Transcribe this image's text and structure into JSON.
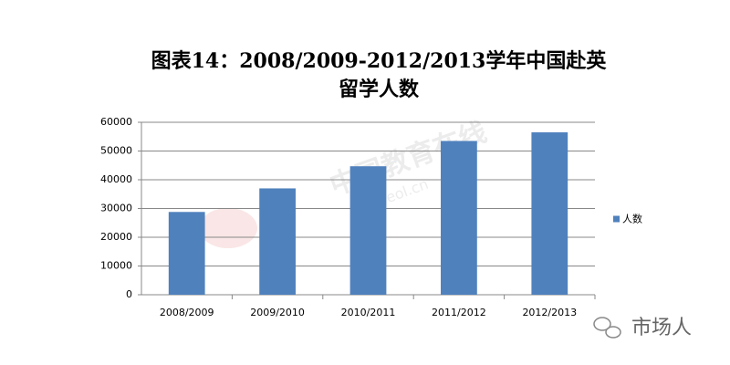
{
  "chart_data": {
    "type": "bar",
    "title": "图表14：2008/2009-2012/2013学年中国赴英留学人数",
    "categories": [
      "2008/2009",
      "2009/2010",
      "2010/2011",
      "2011/2012",
      "2012/2013"
    ],
    "series": [
      {
        "name": "人数",
        "color": "#4f81bd",
        "values": [
          28800,
          37000,
          44700,
          53500,
          56500
        ]
      }
    ],
    "ylim": [
      0,
      60000
    ],
    "yticks": [
      0,
      10000,
      20000,
      30000,
      40000,
      50000,
      60000
    ],
    "grid": true,
    "legend": "right",
    "watermarks": [
      "中国教育在线",
      "www.eol.cn",
      "市场人"
    ]
  }
}
